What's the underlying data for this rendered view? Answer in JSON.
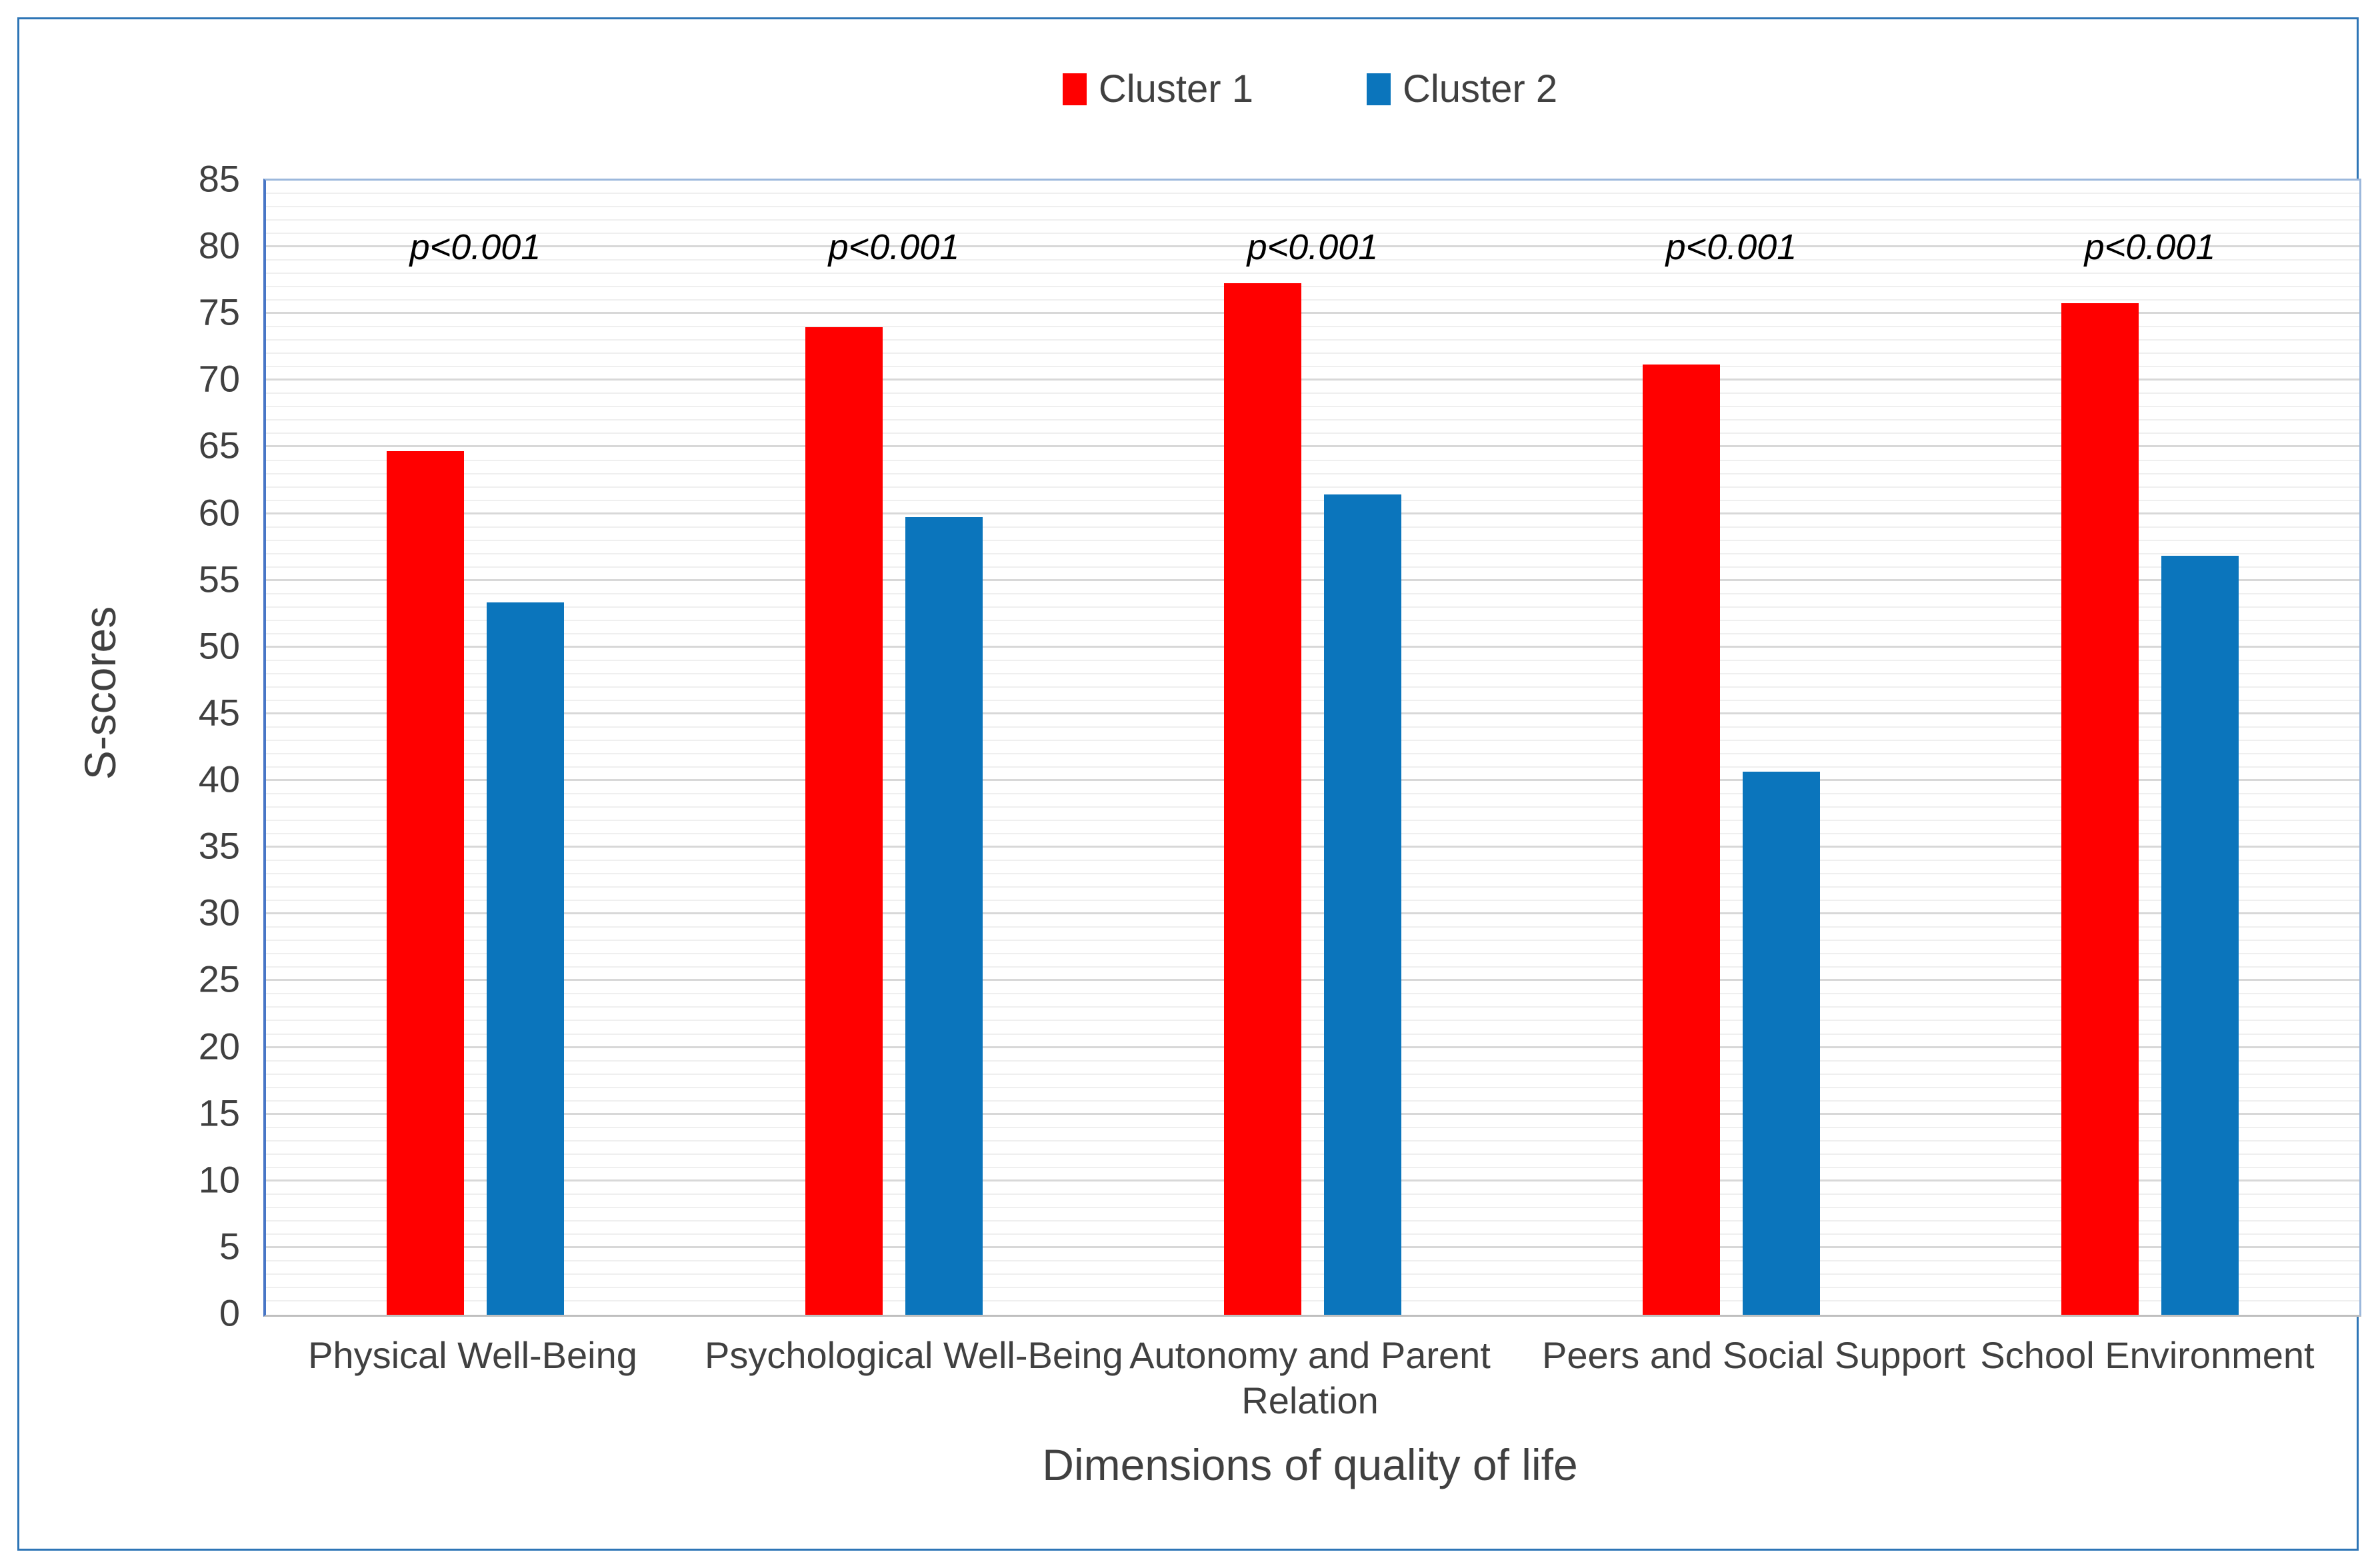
{
  "chart_data": {
    "type": "bar",
    "title": "",
    "categories": [
      "Physical Well-Being",
      "Psychological Well-Being",
      "Autonomy and Parent Relation",
      "Peers and Social Support",
      "School Environment"
    ],
    "series": [
      {
        "name": "Cluster 1",
        "color": "#ff0000",
        "values": [
          64.7,
          74.0,
          77.3,
          71.2,
          75.8
        ]
      },
      {
        "name": "Cluster 2",
        "color": "#0b75bc",
        "values": [
          53.4,
          59.8,
          61.5,
          40.7,
          56.9
        ]
      }
    ],
    "annotations": [
      "p<0.001",
      "p<0.001",
      "p<0.001",
      "p<0.001",
      "p<0.001"
    ],
    "annotation_y_value": 80,
    "xlabel": "Dimensions of quality of life",
    "ylabel": "S-scores",
    "ylim": [
      0,
      85
    ],
    "y_tick_step": 5,
    "y_minor_step": 1,
    "legend_position": "top-center",
    "grid": "horizontal, minor every 1, major every 5"
  },
  "colors": {
    "background": "#ffffff",
    "frame_border": "#2e75b6",
    "plot_border_light": "#9cb8dc",
    "axis_line": "#4876c6",
    "baseline": "#bfbfbf",
    "major_grid": "#d8d8d8",
    "minor_grid": "#efefef",
    "tick_text": "#404040",
    "annotation_text": "#000000"
  }
}
